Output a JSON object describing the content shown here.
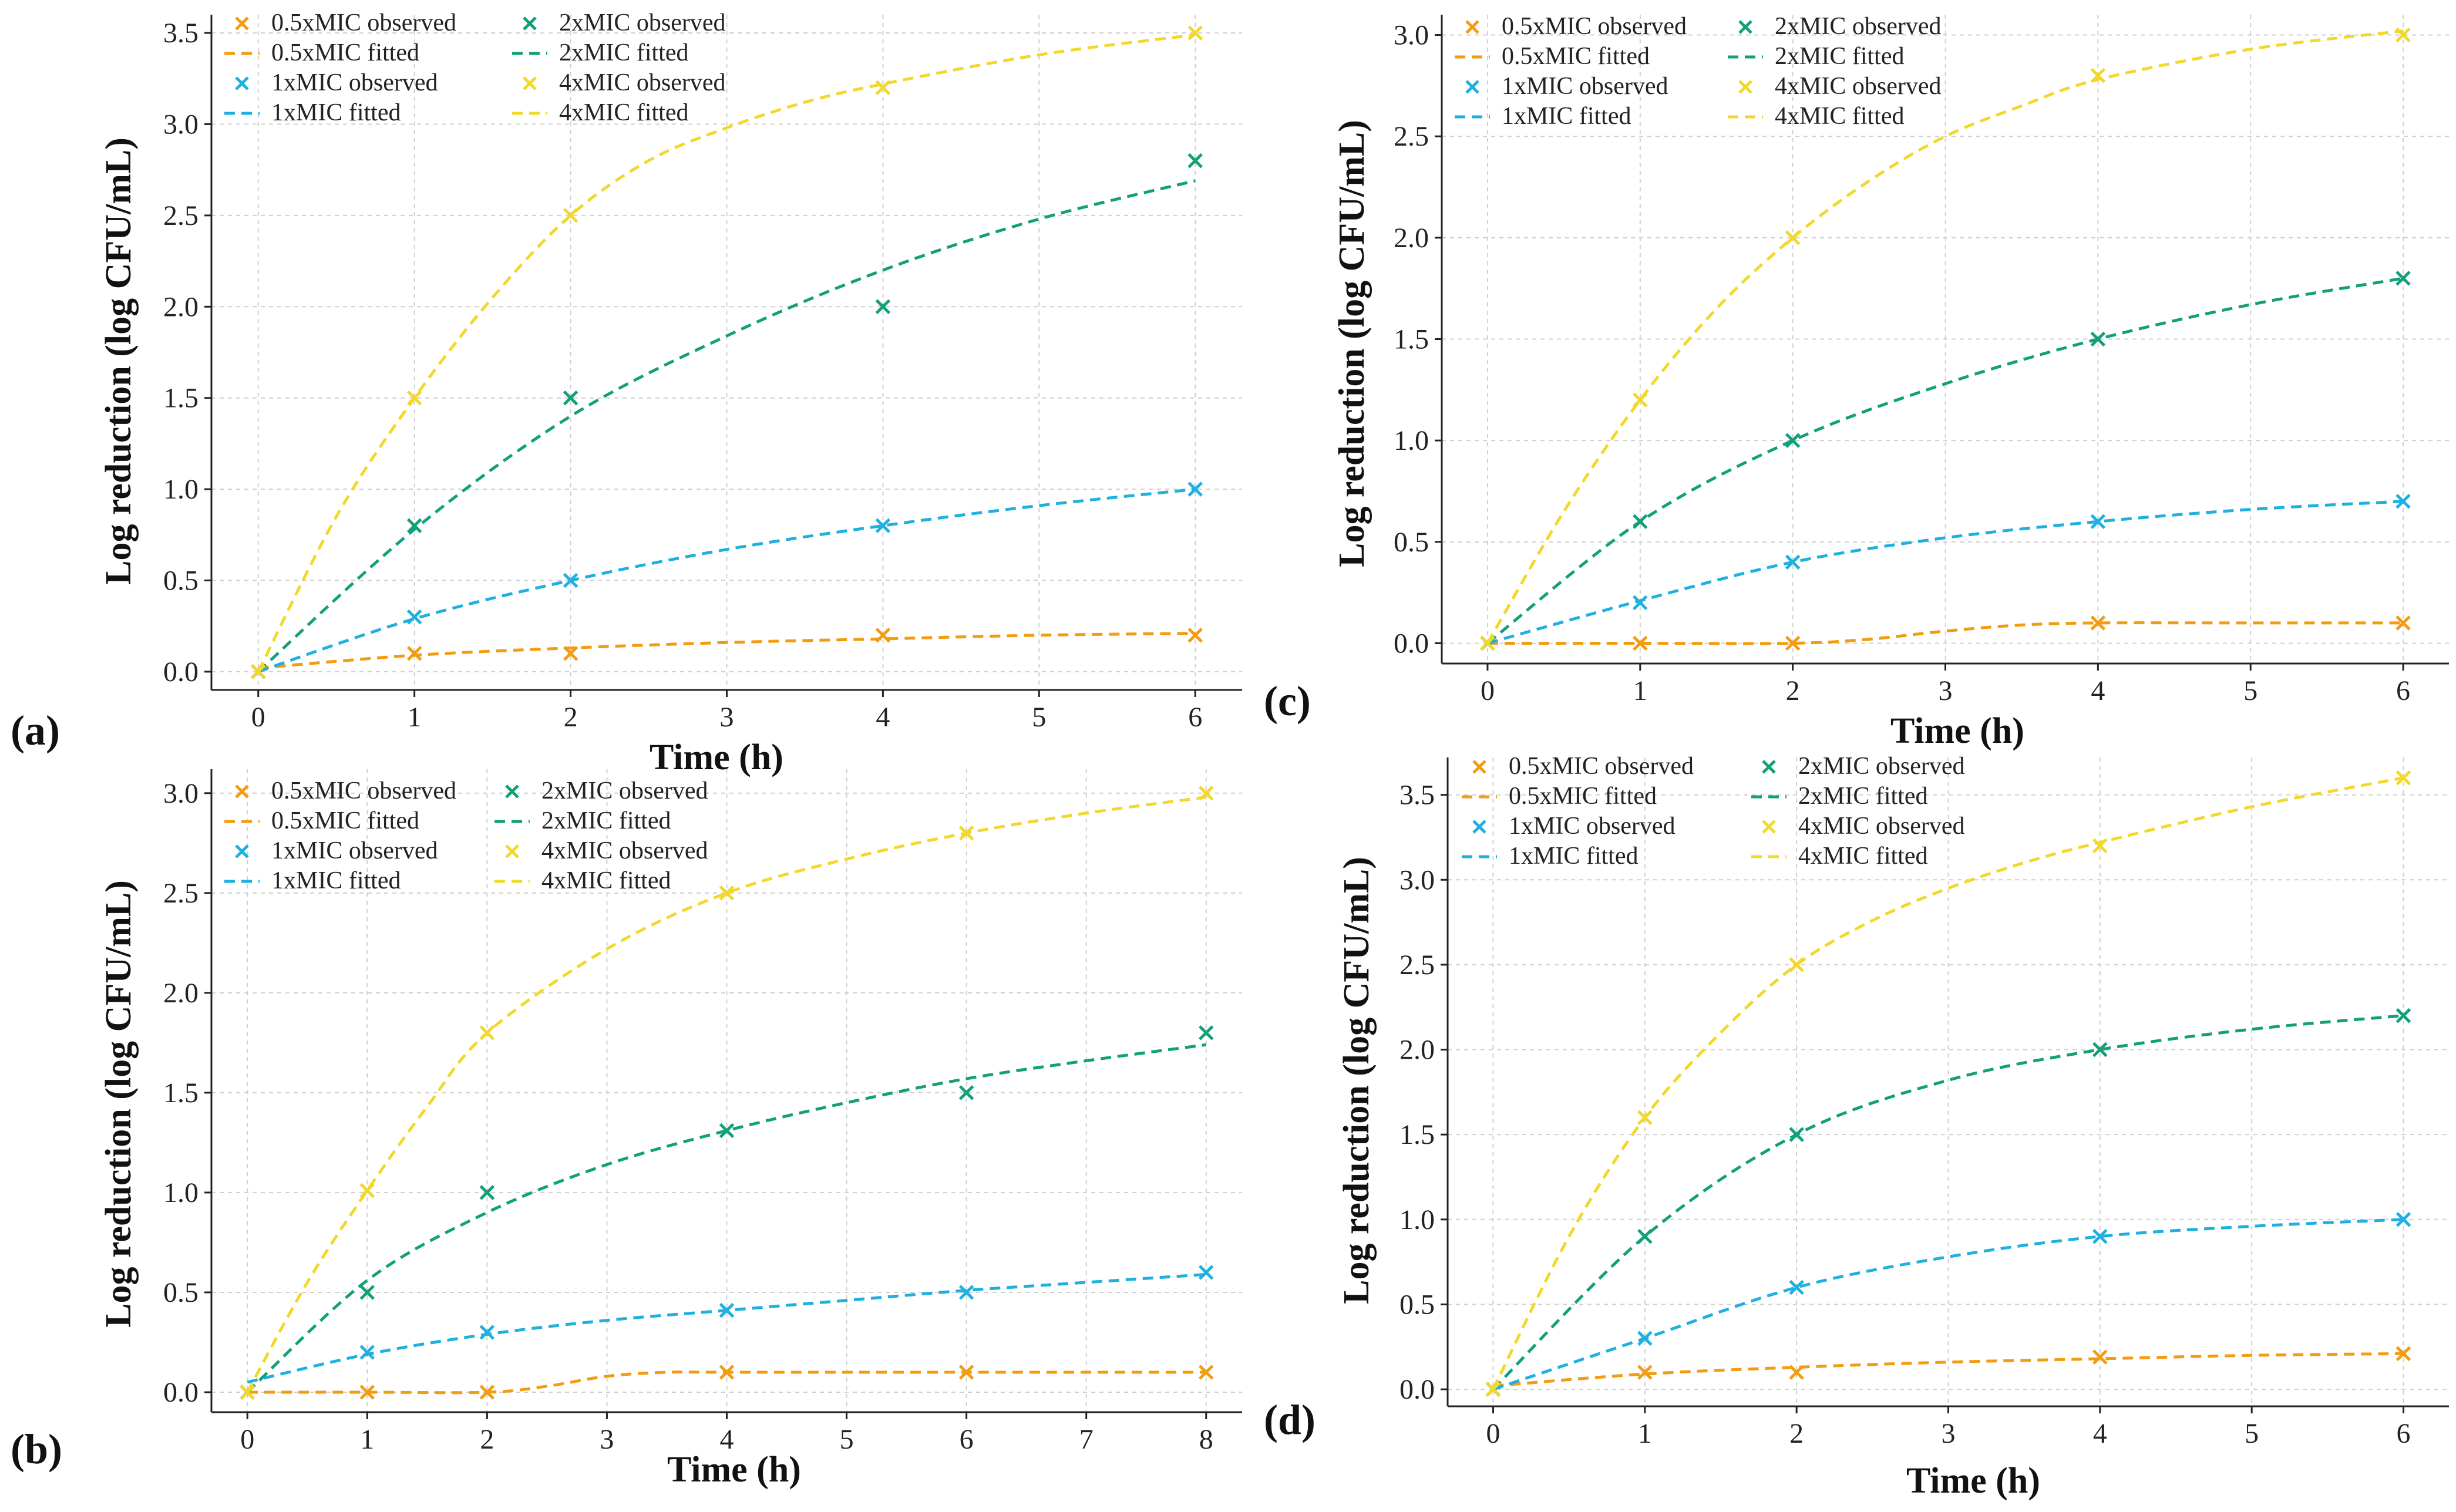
{
  "chart_data": [
    {
      "id": "a",
      "panel_label": "(a)",
      "type": "line",
      "xlabel": "Time (h)",
      "ylabel": "Log reduction (log CFU/mL)",
      "xlim": [
        -0.3,
        6.3
      ],
      "ylim": [
        -0.1,
        3.6
      ],
      "xticks": [
        0,
        1,
        2,
        3,
        4,
        5,
        6
      ],
      "yticks": [
        0.0,
        0.5,
        1.0,
        1.5,
        2.0,
        2.5,
        3.0,
        3.5
      ],
      "grid": true,
      "series": [
        {
          "name": "0.5xMIC",
          "color": "#F39C12",
          "observed": {
            "x": [
              0,
              1,
              2,
              4,
              6
            ],
            "y": [
              0.0,
              0.1,
              0.1,
              0.2,
              0.2
            ]
          },
          "fitted": {
            "x": [
              0,
              1,
              2,
              3,
              4,
              5,
              6
            ],
            "y": [
              0.02,
              0.09,
              0.13,
              0.16,
              0.18,
              0.2,
              0.21
            ]
          }
        },
        {
          "name": "1xMIC",
          "color": "#1FB0E0",
          "observed": {
            "x": [
              0,
              1,
              2,
              4,
              6
            ],
            "y": [
              0.0,
              0.3,
              0.5,
              0.8,
              1.0
            ]
          },
          "fitted": {
            "x": [
              0,
              1,
              2,
              3,
              4,
              5,
              6
            ],
            "y": [
              0.0,
              0.29,
              0.5,
              0.67,
              0.8,
              0.91,
              1.0
            ]
          }
        },
        {
          "name": "2xMIC",
          "color": "#12A07A",
          "observed": {
            "x": [
              0,
              1,
              2,
              4,
              6
            ],
            "y": [
              0.0,
              0.8,
              1.5,
              2.0,
              2.8
            ]
          },
          "fitted": {
            "x": [
              0,
              1,
              2,
              3,
              4,
              5,
              6
            ],
            "y": [
              0.0,
              0.78,
              1.4,
              1.84,
              2.2,
              2.48,
              2.69
            ]
          }
        },
        {
          "name": "4xMIC",
          "color": "#F2D82B",
          "observed": {
            "x": [
              0,
              1,
              2,
              4,
              6
            ],
            "y": [
              0.0,
              1.5,
              2.5,
              3.2,
              3.5
            ]
          },
          "fitted": {
            "x": [
              0,
              0.5,
              1,
              1.5,
              2,
              2.5,
              3,
              3.5,
              4,
              5,
              6
            ],
            "y": [
              0.0,
              0.85,
              1.5,
              2.05,
              2.5,
              2.8,
              2.98,
              3.12,
              3.22,
              3.38,
              3.49
            ]
          }
        }
      ],
      "legend": [
        [
          "0.5xMIC observed",
          "0.5xMIC fitted",
          "1xMIC observed",
          "1xMIC fitted"
        ],
        [
          "2xMIC observed",
          "2xMIC fitted",
          "4xMIC observed",
          "4xMIC fitted"
        ]
      ]
    },
    {
      "id": "b",
      "panel_label": "(b)",
      "type": "line",
      "xlabel": "Time (h)",
      "ylabel": "Log reduction (log CFU/mL)",
      "xlim": [
        -0.3,
        8.3
      ],
      "ylim": [
        -0.1,
        3.12
      ],
      "xticks": [
        0,
        1,
        2,
        3,
        4,
        5,
        6,
        7,
        8
      ],
      "yticks": [
        0.0,
        0.5,
        1.0,
        1.5,
        2.0,
        2.5,
        3.0
      ],
      "grid": true,
      "series": [
        {
          "name": "0.5xMIC",
          "color": "#F39C12",
          "observed": {
            "x": [
              0,
              1,
              2,
              4,
              6,
              8
            ],
            "y": [
              0.0,
              0.0,
              0.0,
              0.1,
              0.1,
              0.1
            ]
          },
          "fitted": {
            "x": [
              0,
              1,
              2,
              2.5,
              3,
              3.5,
              4,
              6,
              8
            ],
            "y": [
              0.0,
              0.0,
              0.0,
              0.03,
              0.08,
              0.1,
              0.1,
              0.1,
              0.1
            ]
          }
        },
        {
          "name": "1xMIC",
          "color": "#1FB0E0",
          "observed": {
            "x": [
              0,
              1,
              2,
              4,
              6,
              8
            ],
            "y": [
              0.0,
              0.2,
              0.3,
              0.41,
              0.5,
              0.6
            ]
          },
          "fitted": {
            "x": [
              0,
              1,
              2,
              3,
              4,
              5,
              6,
              7,
              8
            ],
            "y": [
              0.05,
              0.19,
              0.29,
              0.36,
              0.41,
              0.46,
              0.51,
              0.55,
              0.59
            ]
          }
        },
        {
          "name": "2xMIC",
          "color": "#12A07A",
          "observed": {
            "x": [
              0,
              1,
              2,
              4,
              6,
              8
            ],
            "y": [
              0.0,
              0.5,
              1.0,
              1.31,
              1.5,
              1.8
            ]
          },
          "fitted": {
            "x": [
              0,
              1,
              2,
              3,
              4,
              5,
              6,
              7,
              8
            ],
            "y": [
              0.0,
              0.56,
              0.9,
              1.14,
              1.31,
              1.45,
              1.57,
              1.66,
              1.74
            ]
          }
        },
        {
          "name": "4xMIC",
          "color": "#F2D82B",
          "observed": {
            "x": [
              0,
              1,
              2,
              4,
              6,
              8
            ],
            "y": [
              0.0,
              1.01,
              1.8,
              2.5,
              2.8,
              3.0
            ]
          },
          "fitted": {
            "x": [
              0,
              0.5,
              1,
              1.5,
              2,
              3,
              4,
              5,
              6,
              7,
              8
            ],
            "y": [
              0.0,
              0.55,
              1.01,
              1.43,
              1.8,
              2.22,
              2.5,
              2.67,
              2.8,
              2.9,
              2.98
            ]
          }
        }
      ],
      "legend": [
        [
          "0.5xMIC observed",
          "0.5xMIC fitted",
          "1xMIC observed",
          "1xMIC fitted"
        ],
        [
          "2xMIC observed",
          "2xMIC fitted",
          "4xMIC observed",
          "4xMIC fitted"
        ]
      ]
    },
    {
      "id": "c",
      "panel_label": "(c)",
      "type": "line",
      "xlabel": "Time (h)",
      "ylabel": "Log reduction (log CFU/mL)",
      "xlim": [
        -0.3,
        6.3
      ],
      "ylim": [
        -0.1,
        3.1
      ],
      "xticks": [
        0,
        1,
        2,
        3,
        4,
        5,
        6
      ],
      "yticks": [
        0.0,
        0.5,
        1.0,
        1.5,
        2.0,
        2.5,
        3.0
      ],
      "grid": true,
      "series": [
        {
          "name": "0.5xMIC",
          "color": "#F39C12",
          "observed": {
            "x": [
              0,
              1,
              2,
              4,
              6
            ],
            "y": [
              0.0,
              0.0,
              0.0,
              0.1,
              0.1
            ]
          },
          "fitted": {
            "x": [
              0,
              1,
              2,
              2.5,
              3,
              3.5,
              4,
              5,
              6
            ],
            "y": [
              0.0,
              0.0,
              0.0,
              0.02,
              0.06,
              0.09,
              0.1,
              0.1,
              0.1
            ]
          }
        },
        {
          "name": "1xMIC",
          "color": "#1FB0E0",
          "observed": {
            "x": [
              0,
              1,
              2,
              4,
              6
            ],
            "y": [
              0.0,
              0.2,
              0.4,
              0.6,
              0.7
            ]
          },
          "fitted": {
            "x": [
              0,
              1,
              2,
              3,
              4,
              5,
              6
            ],
            "y": [
              0.0,
              0.21,
              0.4,
              0.52,
              0.6,
              0.66,
              0.7
            ]
          }
        },
        {
          "name": "2xMIC",
          "color": "#12A07A",
          "observed": {
            "x": [
              0,
              1,
              2,
              4,
              6
            ],
            "y": [
              0.0,
              0.6,
              1.0,
              1.5,
              1.8
            ]
          },
          "fitted": {
            "x": [
              0,
              1,
              2,
              3,
              4,
              5,
              6
            ],
            "y": [
              0.0,
              0.6,
              1.0,
              1.28,
              1.5,
              1.67,
              1.8
            ]
          }
        },
        {
          "name": "4xMIC",
          "color": "#F2D82B",
          "observed": {
            "x": [
              0,
              1,
              2,
              4,
              6
            ],
            "y": [
              0.0,
              1.2,
              2.0,
              2.8,
              3.0
            ]
          },
          "fitted": {
            "x": [
              0,
              0.5,
              1,
              1.5,
              2,
              2.5,
              3,
              3.5,
              4,
              5,
              6
            ],
            "y": [
              0.0,
              0.65,
              1.2,
              1.65,
              2.0,
              2.28,
              2.5,
              2.65,
              2.78,
              2.93,
              3.02
            ]
          }
        }
      ],
      "legend": [
        [
          "0.5xMIC observed",
          "0.5xMIC fitted",
          "1xMIC observed",
          "1xMIC fitted"
        ],
        [
          "2xMIC observed",
          "2xMIC fitted",
          "4xMIC observed",
          "4xMIC fitted"
        ]
      ]
    },
    {
      "id": "d",
      "panel_label": "(d)",
      "type": "line",
      "xlabel": "Time (h)",
      "ylabel": "Log reduction (log CFU/mL)",
      "xlim": [
        -0.3,
        6.3
      ],
      "ylim": [
        -0.1,
        3.72
      ],
      "xticks": [
        0,
        1,
        2,
        3,
        4,
        5,
        6
      ],
      "yticks": [
        0.0,
        0.5,
        1.0,
        1.5,
        2.0,
        2.5,
        3.0,
        3.5
      ],
      "grid": true,
      "series": [
        {
          "name": "0.5xMIC",
          "color": "#F39C12",
          "observed": {
            "x": [
              0,
              1,
              2,
              4,
              6
            ],
            "y": [
              0.0,
              0.1,
              0.1,
              0.19,
              0.21
            ]
          },
          "fitted": {
            "x": [
              0,
              1,
              2,
              3,
              4,
              5,
              6
            ],
            "y": [
              0.02,
              0.09,
              0.13,
              0.16,
              0.18,
              0.2,
              0.21
            ]
          }
        },
        {
          "name": "1xMIC",
          "color": "#1FB0E0",
          "observed": {
            "x": [
              0,
              1,
              2,
              4,
              6
            ],
            "y": [
              0.0,
              0.3,
              0.6,
              0.9,
              1.0
            ]
          },
          "fitted": {
            "x": [
              0,
              1,
              2,
              3,
              4,
              5,
              6
            ],
            "y": [
              0.0,
              0.3,
              0.6,
              0.78,
              0.9,
              0.96,
              1.0
            ]
          }
        },
        {
          "name": "2xMIC",
          "color": "#12A07A",
          "observed": {
            "x": [
              0,
              1,
              2,
              4,
              6
            ],
            "y": [
              0.0,
              0.9,
              1.5,
              2.0,
              2.2
            ]
          },
          "fitted": {
            "x": [
              0,
              1,
              2,
              3,
              4,
              5,
              6
            ],
            "y": [
              0.0,
              0.9,
              1.5,
              1.82,
              2.0,
              2.12,
              2.2
            ]
          }
        },
        {
          "name": "4xMIC",
          "color": "#F2D82B",
          "observed": {
            "x": [
              0,
              1,
              2,
              4,
              6
            ],
            "y": [
              0.0,
              1.6,
              2.5,
              3.2,
              3.6
            ]
          },
          "fitted": {
            "x": [
              0,
              0.5,
              1,
              1.5,
              2,
              2.5,
              3,
              3.5,
              4,
              5,
              6
            ],
            "y": [
              0.0,
              0.9,
              1.6,
              2.1,
              2.5,
              2.76,
              2.95,
              3.1,
              3.22,
              3.43,
              3.6
            ]
          }
        }
      ],
      "legend": [
        [
          "0.5xMIC observed",
          "0.5xMIC fitted",
          "1xMIC observed",
          "1xMIC fitted"
        ],
        [
          "2xMIC observed",
          "2xMIC fitted",
          "4xMIC observed",
          "4xMIC fitted"
        ]
      ]
    }
  ]
}
